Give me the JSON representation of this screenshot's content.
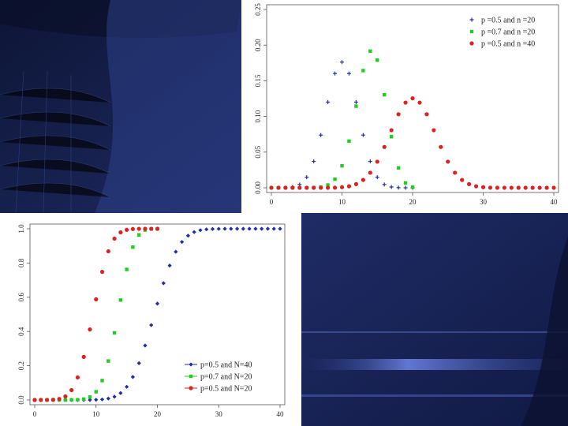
{
  "slide": {
    "background_colors": [
      "#0d1535",
      "#1f2c66",
      "#34468f",
      "#5a6fc7"
    ]
  },
  "chart_data": [
    {
      "type": "scatter",
      "title": "",
      "xlabel": "",
      "ylabel": "",
      "xlim": [
        0,
        40
      ],
      "ylim": [
        0,
        0.25
      ],
      "x_ticks": [
        0,
        10,
        20,
        30,
        40
      ],
      "y_ticks": [
        0.0,
        0.05,
        0.1,
        0.15,
        0.2,
        0.25
      ],
      "x_tick_labels": [
        "0",
        "10",
        "20",
        "30",
        "40"
      ],
      "y_tick_labels": [
        "0.00",
        "0.05",
        "0.10",
        "0.15",
        "0.20",
        "0.25"
      ],
      "y_tick_label_rotation": "vertical",
      "grid": false,
      "legend_position": "top-right",
      "series": [
        {
          "name": "p =0.5 and n =20",
          "color": "#1f2fa8",
          "marker": "plus",
          "x": [
            0,
            1,
            2,
            3,
            4,
            5,
            6,
            7,
            8,
            9,
            10,
            11,
            12,
            13,
            14,
            15,
            16,
            17,
            18,
            19,
            20
          ],
          "values": [
            0.0,
            0.0,
            0.0002,
            0.0011,
            0.0046,
            0.0148,
            0.037,
            0.0739,
            0.1201,
            0.1602,
            0.1762,
            0.1602,
            0.1201,
            0.0739,
            0.037,
            0.0148,
            0.0046,
            0.0011,
            0.0002,
            0.0,
            0.0
          ]
        },
        {
          "name": "p =0.7 and n =20",
          "color": "#22cc22",
          "marker": "square",
          "x": [
            0,
            1,
            2,
            3,
            4,
            5,
            6,
            7,
            8,
            9,
            10,
            11,
            12,
            13,
            14,
            15,
            16,
            17,
            18,
            19,
            20
          ],
          "values": [
            0.0,
            0.0,
            0.0,
            0.0,
            0.0,
            0.0,
            0.0002,
            0.001,
            0.0039,
            0.012,
            0.0308,
            0.0654,
            0.1144,
            0.1643,
            0.1916,
            0.1789,
            0.1304,
            0.0716,
            0.0278,
            0.0068,
            0.0008
          ]
        },
        {
          "name": "p =0.5 and n =40",
          "color": "#dd2222",
          "marker": "circle",
          "x": [
            0,
            1,
            2,
            3,
            4,
            5,
            6,
            7,
            8,
            9,
            10,
            11,
            12,
            13,
            14,
            15,
            16,
            17,
            18,
            19,
            20,
            21,
            22,
            23,
            24,
            25,
            26,
            27,
            28,
            29,
            30,
            31,
            32,
            33,
            34,
            35,
            36,
            37,
            38,
            39,
            40
          ],
          "values": [
            0,
            0,
            0,
            0,
            0,
            0,
            0,
            0,
            0,
            0.0001,
            0.0008,
            0.0021,
            0.0051,
            0.0109,
            0.0211,
            0.0366,
            0.0572,
            0.0807,
            0.1031,
            0.1194,
            0.1254,
            0.1194,
            0.1031,
            0.0807,
            0.0572,
            0.0366,
            0.0211,
            0.0109,
            0.0051,
            0.0021,
            0.0008,
            0.0001,
            0,
            0,
            0,
            0,
            0,
            0,
            0,
            0,
            0
          ]
        }
      ]
    },
    {
      "type": "scatter",
      "title": "",
      "xlabel": "",
      "ylabel": "",
      "xlim": [
        0,
        40
      ],
      "ylim": [
        0,
        1.0
      ],
      "x_ticks": [
        0,
        10,
        20,
        30,
        40
      ],
      "y_ticks": [
        0.0,
        0.2,
        0.4,
        0.6,
        0.8,
        1.0
      ],
      "x_tick_labels": [
        "0",
        "10",
        "20",
        "30",
        "40"
      ],
      "y_tick_labels": [
        "0.0",
        "0.2",
        "0.4",
        "0.6",
        "0.8",
        "1.0"
      ],
      "y_tick_label_rotation": "vertical",
      "grid": false,
      "legend_position": "bottom-right",
      "series": [
        {
          "name": "p=0.5 and N=40",
          "color": "#1f2fa8",
          "marker": "diamond",
          "x": [
            0,
            1,
            2,
            3,
            4,
            5,
            6,
            7,
            8,
            9,
            10,
            11,
            12,
            13,
            14,
            15,
            16,
            17,
            18,
            19,
            20,
            21,
            22,
            23,
            24,
            25,
            26,
            27,
            28,
            29,
            30,
            31,
            32,
            33,
            34,
            35,
            36,
            37,
            38,
            39,
            40
          ],
          "values": [
            0,
            0,
            0,
            0,
            0,
            0,
            0,
            0,
            0,
            0.0001,
            0.0011,
            0.0032,
            0.0083,
            0.0192,
            0.0403,
            0.0769,
            0.1341,
            0.2148,
            0.3179,
            0.4373,
            0.5627,
            0.6821,
            0.7852,
            0.8659,
            0.9231,
            0.9597,
            0.9808,
            0.9917,
            0.9968,
            0.9989,
            0.9997,
            0.9999,
            1,
            1,
            1,
            1,
            1,
            1,
            1,
            1,
            1
          ]
        },
        {
          "name": "p=0.7 and N=20",
          "color": "#22cc22",
          "marker": "square",
          "x": [
            0,
            1,
            2,
            3,
            4,
            5,
            6,
            7,
            8,
            9,
            10,
            11,
            12,
            13,
            14,
            15,
            16,
            17,
            18,
            19,
            20
          ],
          "values": [
            0,
            0,
            0,
            0,
            0,
            0,
            0.0003,
            0.0013,
            0.0051,
            0.0171,
            0.048,
            0.1133,
            0.2277,
            0.392,
            0.5836,
            0.7625,
            0.8929,
            0.9645,
            0.9924,
            0.9992,
            1
          ]
        },
        {
          "name": "p=0.5 and N=20",
          "color": "#dd2222",
          "marker": "circle",
          "x": [
            0,
            1,
            2,
            3,
            4,
            5,
            6,
            7,
            8,
            9,
            10,
            11,
            12,
            13,
            14,
            15,
            16,
            17,
            18,
            19,
            20
          ],
          "values": [
            0,
            0,
            0.0002,
            0.0013,
            0.0059,
            0.0207,
            0.0577,
            0.1316,
            0.2517,
            0.4119,
            0.5881,
            0.7483,
            0.8684,
            0.9423,
            0.9793,
            0.9941,
            0.9987,
            0.9998,
            1,
            1,
            1
          ]
        }
      ]
    }
  ]
}
